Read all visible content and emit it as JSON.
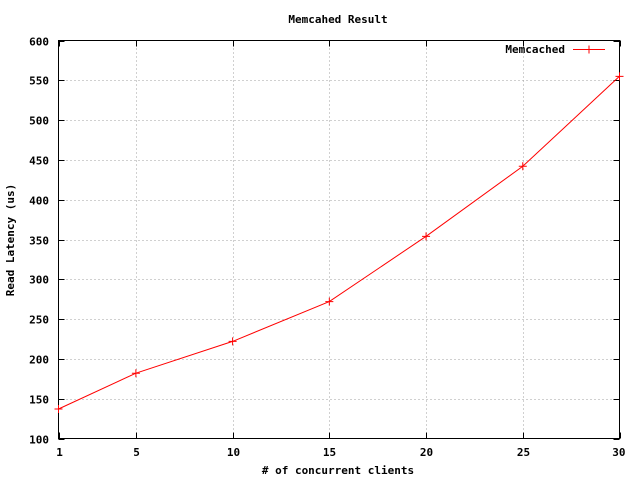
{
  "chart_data": {
    "type": "line",
    "title": "Memcahed Result",
    "xlabel": "# of concurrent clients",
    "ylabel": "Read Latency (us)",
    "x": [
      1,
      5,
      10,
      15,
      20,
      25,
      30
    ],
    "xticks": [
      1,
      5,
      10,
      15,
      20,
      25,
      30
    ],
    "yticks": [
      100,
      150,
      200,
      250,
      300,
      350,
      400,
      450,
      500,
      550,
      600
    ],
    "xlim": [
      1,
      30
    ],
    "ylim": [
      100,
      600
    ],
    "grid": true,
    "legend_position": "top-right",
    "series": [
      {
        "name": "Memcached",
        "color": "#ff0000",
        "marker": "plus",
        "values": [
          137,
          182,
          222,
          272,
          354,
          442,
          555
        ]
      }
    ]
  }
}
